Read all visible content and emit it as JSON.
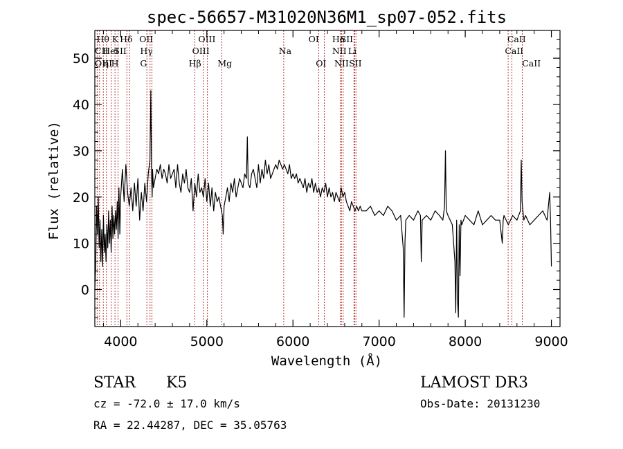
{
  "chart_data": {
    "type": "line",
    "title": "spec-56657-M31020N36M1_sp07-052.fits",
    "xlabel": "Wavelength (Å)",
    "ylabel": "Flux (relative)",
    "xlim": [
      3700,
      9100
    ],
    "ylim": [
      -8,
      56
    ],
    "xticks": [
      4000,
      5000,
      6000,
      7000,
      8000,
      9000
    ],
    "yticks": [
      0,
      10,
      20,
      30,
      40,
      50
    ],
    "grid": false,
    "series": [
      {
        "color": "#000000",
        "x": [
          3700,
          3710,
          3720,
          3730,
          3740,
          3750,
          3760,
          3770,
          3780,
          3790,
          3800,
          3810,
          3820,
          3830,
          3840,
          3850,
          3860,
          3870,
          3880,
          3890,
          3900,
          3910,
          3920,
          3930,
          3940,
          3950,
          3960,
          3970,
          3980,
          3990,
          4000,
          4020,
          4040,
          4060,
          4080,
          4100,
          4120,
          4140,
          4160,
          4180,
          4200,
          4220,
          4240,
          4260,
          4280,
          4300,
          4320,
          4340,
          4350,
          4360,
          4365,
          4370,
          4380,
          4400,
          4420,
          4440,
          4460,
          4480,
          4500,
          4520,
          4540,
          4560,
          4580,
          4600,
          4620,
          4640,
          4660,
          4680,
          4700,
          4720,
          4740,
          4760,
          4780,
          4800,
          4820,
          4840,
          4860,
          4880,
          4900,
          4920,
          4940,
          4960,
          4980,
          5000,
          5020,
          5040,
          5060,
          5080,
          5100,
          5120,
          5140,
          5160,
          5180,
          5190,
          5200,
          5220,
          5240,
          5260,
          5280,
          5300,
          5320,
          5340,
          5360,
          5380,
          5400,
          5420,
          5440,
          5460,
          5470,
          5480,
          5500,
          5520,
          5540,
          5560,
          5580,
          5600,
          5620,
          5640,
          5660,
          5680,
          5700,
          5720,
          5740,
          5760,
          5780,
          5800,
          5820,
          5840,
          5860,
          5880,
          5900,
          5920,
          5940,
          5960,
          5980,
          6000,
          6020,
          6040,
          6060,
          6080,
          6100,
          6120,
          6140,
          6160,
          6180,
          6200,
          6220,
          6240,
          6260,
          6280,
          6300,
          6320,
          6340,
          6360,
          6380,
          6400,
          6420,
          6440,
          6460,
          6480,
          6500,
          6520,
          6540,
          6560,
          6580,
          6600,
          6620,
          6640,
          6660,
          6680,
          6700,
          6720,
          6740,
          6760,
          6780,
          6800,
          6850,
          6900,
          6950,
          7000,
          7050,
          7100,
          7150,
          7200,
          7250,
          7280,
          7290,
          7300,
          7310,
          7350,
          7400,
          7450,
          7480,
          7490,
          7500,
          7550,
          7600,
          7650,
          7700,
          7740,
          7760,
          7770,
          7780,
          7800,
          7850,
          7880,
          7890,
          7900,
          7910,
          7920,
          7930,
          7940,
          7950,
          7960,
          8000,
          8050,
          8100,
          8150,
          8200,
          8250,
          8300,
          8350,
          8400,
          8430,
          8440,
          8450,
          8500,
          8550,
          8600,
          8640,
          8650,
          8660,
          8680,
          8700,
          8750,
          8800,
          8850,
          8900,
          8950,
          8980,
          8990,
          9000
        ],
        "y": [
          0,
          5,
          18,
          12,
          20,
          9,
          15,
          6,
          13,
          5,
          16,
          8,
          12,
          6,
          14,
          9,
          17,
          10,
          15,
          8,
          18,
          11,
          16,
          12,
          17,
          13,
          19,
          11,
          22,
          12,
          20,
          26,
          19,
          27,
          21,
          18,
          22,
          17,
          23,
          18,
          24,
          15,
          21,
          17,
          23,
          19,
          25,
          28,
          43,
          24,
          20,
          26,
          22,
          24,
          26,
          25,
          27,
          24,
          26,
          25,
          23,
          27,
          24,
          25,
          26,
          22,
          27,
          23,
          21,
          25,
          23,
          26,
          22,
          21,
          24,
          17,
          23,
          20,
          25,
          21,
          22,
          20,
          24,
          19,
          23,
          18,
          22,
          17,
          21,
          19,
          20,
          18,
          16,
          12,
          18,
          20,
          22,
          19,
          23,
          21,
          24,
          20,
          22,
          24,
          23,
          22,
          25,
          24,
          33,
          23,
          22,
          25,
          26,
          24,
          22,
          27,
          23,
          26,
          24,
          28,
          25,
          27,
          24,
          25,
          26,
          27,
          26,
          28,
          27,
          26,
          27,
          26,
          25,
          27,
          24,
          25,
          24,
          25,
          23,
          24,
          23,
          22,
          24,
          21,
          23,
          22,
          24,
          21,
          23,
          21,
          22,
          20,
          22,
          21,
          23,
          20,
          22,
          20,
          21,
          19,
          21,
          20,
          19,
          22,
          20,
          21,
          19,
          18,
          17,
          19,
          18,
          17,
          18,
          17,
          18,
          17,
          17,
          18,
          16,
          17,
          16,
          18,
          17,
          15,
          16,
          9,
          -6,
          10,
          15,
          16,
          15,
          17,
          16,
          6,
          15,
          16,
          15,
          17,
          16,
          15,
          18,
          30,
          17,
          16,
          14,
          6,
          -5,
          15,
          -2,
          -6,
          14,
          3,
          15,
          14,
          16,
          15,
          14,
          17,
          14,
          15,
          16,
          15,
          15,
          10,
          15,
          16,
          14,
          16,
          15,
          17,
          28,
          19,
          15,
          16,
          14,
          15,
          16,
          17,
          15,
          21,
          15,
          5
        ]
      }
    ],
    "line_markers": [
      {
        "label": "Hθ",
        "x": 3798,
        "row": 0,
        "label_x": 3720
      },
      {
        "label": "K",
        "x": 3934,
        "row": 0,
        "label_x": 3900
      },
      {
        "label": "Hδ",
        "x": 4102,
        "row": 0,
        "label_x": 3990
      },
      {
        "label": "OII",
        "x": 4363,
        "row": 0,
        "label_x": 4215
      },
      {
        "label": "OIII",
        "x": 5007,
        "row": 0,
        "label_x": 4900
      },
      {
        "label": "OI",
        "x": 6300,
        "row": 0,
        "label_x": 6180
      },
      {
        "label": "Hα",
        "x": 6563,
        "row": 0,
        "label_x": 6455
      },
      {
        "label": "SII",
        "x": 6716,
        "row": 0,
        "label_x": 6550
      },
      {
        "label": "CaII",
        "x": 8498,
        "row": 0,
        "label_x": 8488
      },
      {
        "label": "CII",
        "x": 3727,
        "row": 1,
        "label_x": 3700
      },
      {
        "label": "HeI",
        "x": 3889,
        "row": 1,
        "label_x": 3790
      },
      {
        "label": "SII",
        "x": 4072,
        "row": 1,
        "label_x": 3920
      },
      {
        "label": "Hγ",
        "x": 4341,
        "row": 1,
        "label_x": 4225
      },
      {
        "label": "OIII",
        "x": 4959,
        "row": 1,
        "label_x": 4830
      },
      {
        "label": "Na",
        "x": 5893,
        "row": 1,
        "label_x": 5835
      },
      {
        "label": "NII",
        "x": 6548,
        "row": 1,
        "label_x": 6455
      },
      {
        "label": "Li",
        "x": 6708,
        "row": 1,
        "label_x": 6640
      },
      {
        "label": "CaII",
        "x": 8542,
        "row": 1,
        "label_x": 8460
      },
      {
        "label": "OIII",
        "x": 3755,
        "row": 2,
        "label_x": 3700
      },
      {
        "label": "η",
        "x": 3835,
        "row": 2,
        "label_x": 3800
      },
      {
        "label": "H",
        "x": 3969,
        "row": 2,
        "label_x": 3890
      },
      {
        "label": "G",
        "x": 4304,
        "row": 2,
        "label_x": 4225
      },
      {
        "label": "Hβ",
        "x": 4861,
        "row": 2,
        "label_x": 4790
      },
      {
        "label": "Mg",
        "x": 5175,
        "row": 2,
        "label_x": 5125
      },
      {
        "label": "OI",
        "x": 6364,
        "row": 2,
        "label_x": 6265
      },
      {
        "label": "NII",
        "x": 6583,
        "row": 2,
        "label_x": 6480
      },
      {
        "label": "SII",
        "x": 6731,
        "row": 2,
        "label_x": 6650
      },
      {
        "label": "CaII",
        "x": 8662,
        "row": 2,
        "label_x": 8660
      }
    ]
  },
  "info": {
    "object_class": "STAR",
    "subclass": "K5",
    "survey": "LAMOST DR3",
    "redshift": "cz = -72.0 ± 17.0 km/s",
    "obs_date": "Obs-Date: 20131230",
    "coords": "RA =  22.44287, DEC =  35.05763"
  }
}
